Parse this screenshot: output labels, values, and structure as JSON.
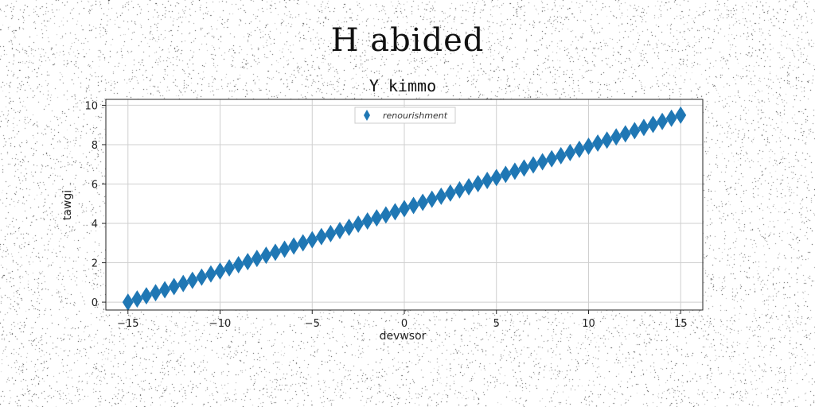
{
  "figure": {
    "suptitle": "H abided"
  },
  "chart_data": {
    "type": "scatter",
    "title": "Y kimmo",
    "xlabel": "devwsor",
    "ylabel": "tawgi",
    "xlim": [
      -16.2,
      16.2
    ],
    "ylim": [
      -0.4,
      10.3
    ],
    "xticks": [
      -15,
      -10,
      -5,
      0,
      5,
      10,
      15
    ],
    "yticks": [
      0,
      2,
      4,
      6,
      8,
      10
    ],
    "xtick_labels": [
      "−15",
      "−10",
      "−5",
      "0",
      "5",
      "10",
      "15"
    ],
    "ytick_labels": [
      "0",
      "2",
      "4",
      "6",
      "8",
      "10"
    ],
    "grid": true,
    "legend_position": "top-center",
    "marker": "diamond",
    "series": [
      {
        "name": "renourishment",
        "color": "#1f77b4",
        "x": [
          -15.0,
          -14.5,
          -14.0,
          -13.5,
          -13.0,
          -12.5,
          -12.0,
          -11.5,
          -11.0,
          -10.5,
          -10.0,
          -9.5,
          -9.0,
          -8.5,
          -8.0,
          -7.5,
          -7.0,
          -6.5,
          -6.0,
          -5.5,
          -5.0,
          -4.5,
          -4.0,
          -3.5,
          -3.0,
          -2.5,
          -2.0,
          -1.5,
          -1.0,
          -0.5,
          0.0,
          0.5,
          1.0,
          1.5,
          2.0,
          2.5,
          3.0,
          3.5,
          4.0,
          4.5,
          5.0,
          5.5,
          6.0,
          6.5,
          7.0,
          7.5,
          8.0,
          8.5,
          9.0,
          9.5,
          10.0,
          10.5,
          11.0,
          11.5,
          12.0,
          12.5,
          13.0,
          13.5,
          14.0,
          14.5,
          15.0
        ],
        "y": [
          0.0,
          0.16,
          0.32,
          0.48,
          0.63,
          0.79,
          0.95,
          1.11,
          1.27,
          1.43,
          1.58,
          1.74,
          1.9,
          2.06,
          2.22,
          2.38,
          2.53,
          2.69,
          2.85,
          3.01,
          3.17,
          3.33,
          3.48,
          3.64,
          3.8,
          3.96,
          4.12,
          4.28,
          4.43,
          4.59,
          4.75,
          4.91,
          5.07,
          5.23,
          5.38,
          5.54,
          5.7,
          5.86,
          6.02,
          6.18,
          6.33,
          6.49,
          6.65,
          6.81,
          6.97,
          7.13,
          7.28,
          7.44,
          7.6,
          7.76,
          7.92,
          8.08,
          8.23,
          8.39,
          8.55,
          8.71,
          8.87,
          9.03,
          9.18,
          9.34,
          9.5
        ]
      }
    ]
  }
}
